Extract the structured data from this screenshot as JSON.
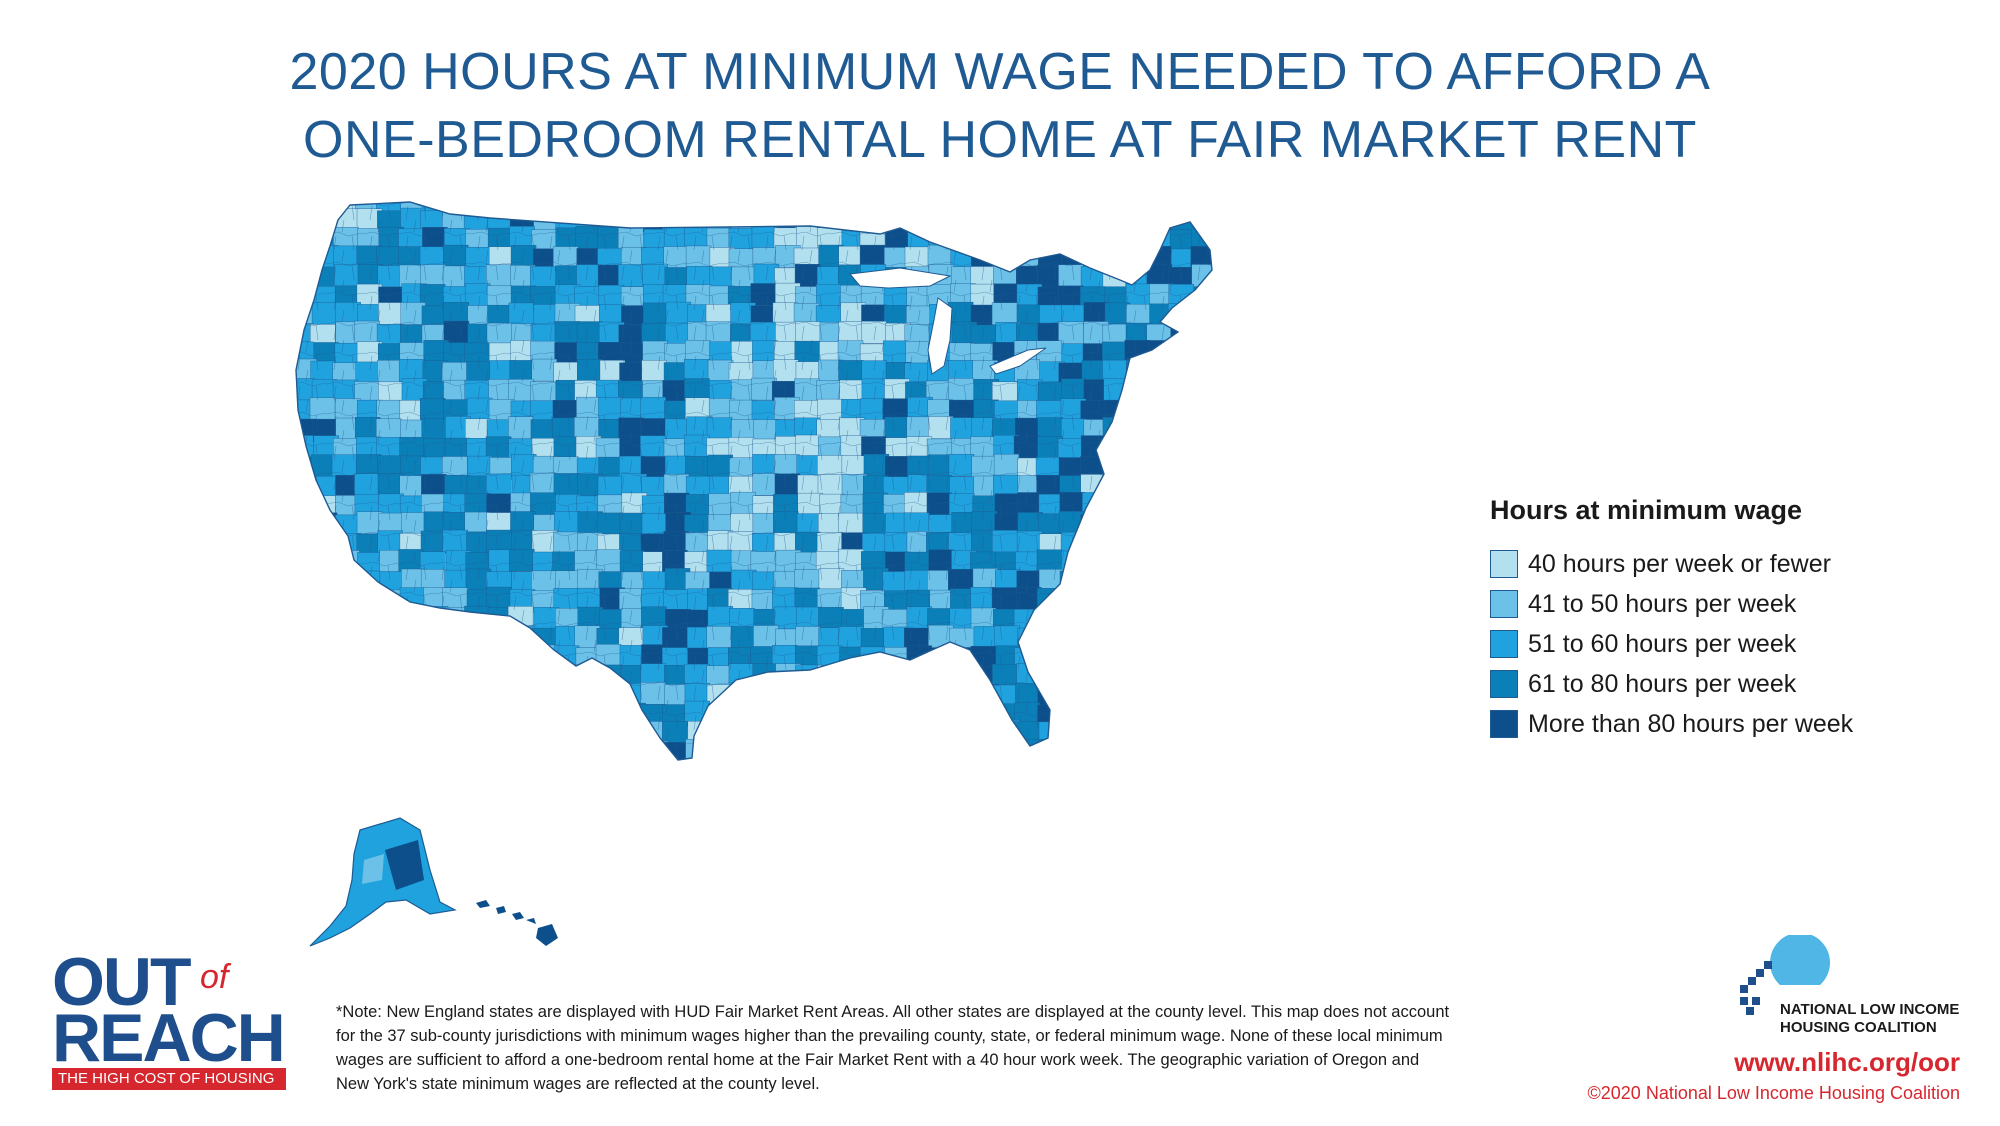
{
  "title": {
    "line1": "2020 HOURS AT MINIMUM WAGE NEEDED TO AFFORD A",
    "line2": "ONE-BEDROOM RENTAL HOME AT FAIR MARKET RENT"
  },
  "legend": {
    "title": "Hours at minimum wage",
    "items": [
      {
        "label": "40 hours per week or fewer",
        "color": "#b3e0ee"
      },
      {
        "label": "41 to 50 hours per week",
        "color": "#6bc1e8"
      },
      {
        "label": "51 to 60 hours per week",
        "color": "#1fa2de"
      },
      {
        "label": "61 to 80 hours per week",
        "color": "#0b7fb7"
      },
      {
        "label": "More than 80 hours per week",
        "color": "#0c4f8a"
      }
    ]
  },
  "map": {
    "regions": [
      "contiguous-us",
      "alaska",
      "hawaii"
    ],
    "border_color": "#1f5a93"
  },
  "logo": {
    "out": "OUT",
    "of": "of",
    "reach": "REACH",
    "tagline": "THE HIGH COST OF HOUSING"
  },
  "note": "*Note: New England states are displayed with HUD Fair Market Rent Areas. All other states are displayed at the county level. This map does not account for the 37 sub-county jurisdictions with minimum wages higher than the prevailing county, state, or federal minimum wage. None of these local minimum wages are sufficient to afford a one-bedroom rental home at the Fair Market Rent with a 40 hour work week. The geographic variation of Oregon and New York's state minimum wages are reflected at the county level.",
  "org": {
    "name_line1": "NATIONAL LOW INCOME",
    "name_line2": "HOUSING COALITION",
    "url": "www.nlihc.org/oor",
    "copyright": "©2020 National Low Income Housing Coalition"
  }
}
